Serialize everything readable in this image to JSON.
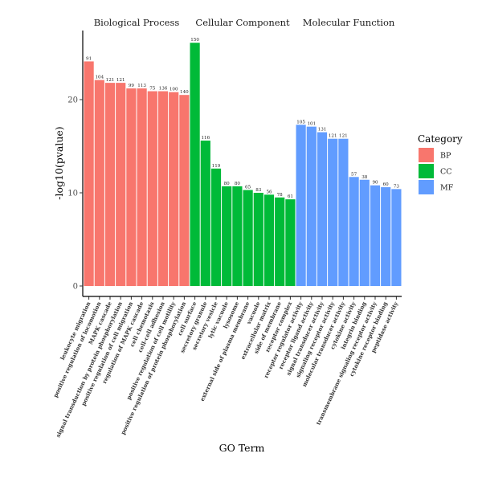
{
  "chart_data": {
    "type": "bar",
    "title": "",
    "xlabel": "GO Term",
    "ylabel": "-log10(pvalue)",
    "ylim": [
      0,
      27
    ],
    "yticks": [
      0,
      10,
      20
    ],
    "grid": false,
    "legend": {
      "title": "Category",
      "position": "right",
      "entries": [
        {
          "key": "BP",
          "label": "BP",
          "color": "#F8766D"
        },
        {
          "key": "CC",
          "label": "CC",
          "color": "#00BA38"
        },
        {
          "key": "MF",
          "label": "MF",
          "color": "#619CFF"
        }
      ]
    },
    "facets": [
      {
        "key": "BP",
        "title": "Biological Process"
      },
      {
        "key": "CC",
        "title": "Cellular Component"
      },
      {
        "key": "MF",
        "title": "Molecular Function"
      }
    ],
    "bars": [
      {
        "term": "leukocyte migration",
        "category": "BP",
        "value": 24.1,
        "count": 91
      },
      {
        "term": "positive regulation of locomotion",
        "category": "BP",
        "value": 22.1,
        "count": 104
      },
      {
        "term": "MAPK cascade",
        "category": "BP",
        "value": 21.8,
        "count": 121
      },
      {
        "term": "signal transduction by protein phosphorylation",
        "category": "BP",
        "value": 21.8,
        "count": 121
      },
      {
        "term": "positive regulation of cell migration",
        "category": "BP",
        "value": 21.2,
        "count": 99
      },
      {
        "term": "regulation of MAPK cascade",
        "category": "BP",
        "value": 21.2,
        "count": 113
      },
      {
        "term": "cell chemotaxis",
        "category": "BP",
        "value": 20.9,
        "count": 75
      },
      {
        "term": "cell-cell adhesion",
        "category": "BP",
        "value": 20.9,
        "count": 136
      },
      {
        "term": "positive regulation of cell motility",
        "category": "BP",
        "value": 20.8,
        "count": 100
      },
      {
        "term": "positive regulation of protein phosphorylation",
        "category": "BP",
        "value": 20.5,
        "count": 140
      },
      {
        "term": "cell surface",
        "category": "CC",
        "value": 26.1,
        "count": 150
      },
      {
        "term": "secretory granule",
        "category": "CC",
        "value": 15.6,
        "count": 116
      },
      {
        "term": "secretory vesicle",
        "category": "CC",
        "value": 12.6,
        "count": 119
      },
      {
        "term": "lytic vacuole",
        "category": "CC",
        "value": 10.7,
        "count": 80
      },
      {
        "term": "lysosome",
        "category": "CC",
        "value": 10.7,
        "count": 80
      },
      {
        "term": "external side of plasma membrane",
        "category": "CC",
        "value": 10.3,
        "count": 65
      },
      {
        "term": "vacuole",
        "category": "CC",
        "value": 10.0,
        "count": 83
      },
      {
        "term": "extracellular matrix",
        "category": "CC",
        "value": 9.8,
        "count": 56
      },
      {
        "term": "side of membrane",
        "category": "CC",
        "value": 9.5,
        "count": 78
      },
      {
        "term": "receptor complex",
        "category": "CC",
        "value": 9.3,
        "count": 61
      },
      {
        "term": "receptor regulator activity",
        "category": "MF",
        "value": 17.3,
        "count": 105
      },
      {
        "term": "receptor ligand activity",
        "category": "MF",
        "value": 17.1,
        "count": 101
      },
      {
        "term": "signal transducer activity",
        "category": "MF",
        "value": 16.5,
        "count": 131
      },
      {
        "term": "signaling receptor activity",
        "category": "MF",
        "value": 15.8,
        "count": 121
      },
      {
        "term": "molecular transducer activity",
        "category": "MF",
        "value": 15.8,
        "count": 121
      },
      {
        "term": "cytokine activity",
        "category": "MF",
        "value": 11.7,
        "count": 57
      },
      {
        "term": "integrin binding",
        "category": "MF",
        "value": 11.4,
        "count": 38
      },
      {
        "term": "transmembrane signaling receptor activity",
        "category": "MF",
        "value": 10.8,
        "count": 90
      },
      {
        "term": "cytokine receptor binding",
        "category": "MF",
        "value": 10.6,
        "count": 60
      },
      {
        "term": "peptidase activity",
        "category": "MF",
        "value": 10.4,
        "count": 73
      }
    ]
  }
}
